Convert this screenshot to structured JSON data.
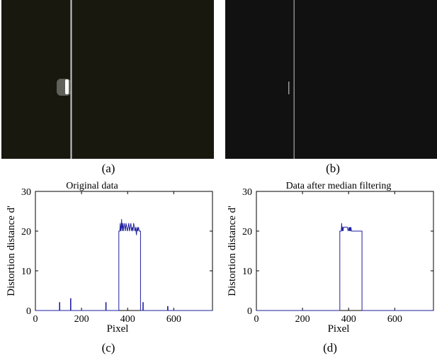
{
  "photos": [
    {
      "label": "(a)",
      "background": "#19180f",
      "line_color": "#c8c8c8"
    },
    {
      "label": "(b)",
      "background": "#111111",
      "line_color": "#8a8a8a"
    }
  ],
  "chart_data": [
    {
      "type": "line",
      "panel_label": "(c)",
      "title": "Original data",
      "xlabel": "Pixel",
      "ylabel": "Distortion distance d'",
      "xlim": [
        0,
        768
      ],
      "ylim": [
        0,
        30
      ],
      "xticks": [
        "0",
        "200",
        "400",
        "600"
      ],
      "yticks": [
        "0",
        "10",
        "20",
        "30"
      ],
      "grid": false,
      "line_color": "#1f1fa0",
      "series": [
        {
          "x": [
            0,
            104,
            104,
            106,
            106,
            152,
            152,
            154,
            154,
            305,
            305,
            307,
            307,
            362,
            362,
            366,
            368,
            370,
            372,
            374,
            376,
            378,
            380,
            382,
            385,
            388,
            390,
            393,
            396,
            399,
            402,
            405,
            408,
            411,
            414,
            417,
            420,
            423,
            426,
            429,
            432,
            435,
            438,
            441,
            444,
            447,
            450,
            453,
            456,
            456,
            466,
            466,
            468,
            468,
            573,
            573,
            575,
            575,
            768
          ],
          "y": [
            0,
            0,
            2,
            2,
            0,
            0,
            3,
            3,
            0,
            0,
            2,
            2,
            0,
            0,
            20,
            20,
            22,
            20,
            21,
            23,
            20,
            22,
            21,
            20,
            22,
            21,
            20,
            22,
            21,
            20,
            21,
            22,
            20,
            21,
            22,
            20,
            21,
            20,
            22,
            21,
            20,
            21,
            19,
            21,
            20,
            21,
            20,
            20,
            20,
            0,
            0,
            2,
            2,
            0,
            0,
            1,
            1,
            0,
            0
          ]
        }
      ]
    },
    {
      "type": "line",
      "panel_label": "(d)",
      "title": "Data after median filtering",
      "xlabel": "Pixel",
      "ylabel": "Distortion distance d'",
      "xlim": [
        0,
        768
      ],
      "ylim": [
        0,
        30
      ],
      "xticks": [
        "0",
        "200",
        "400",
        "600"
      ],
      "yticks": [
        "0",
        "10",
        "20",
        "30"
      ],
      "grid": false,
      "line_color": "#1f1fa0",
      "series": [
        {
          "x": [
            0,
            362,
            362,
            368,
            370,
            372,
            374,
            376,
            378,
            380,
            382,
            386,
            390,
            394,
            398,
            402,
            404,
            406,
            408,
            410,
            412,
            414,
            416,
            420,
            458,
            458,
            768
          ],
          "y": [
            0,
            0,
            20,
            20,
            22,
            20,
            21,
            20,
            21,
            21,
            21,
            21,
            21,
            21,
            20,
            21,
            20,
            21,
            20,
            21,
            20,
            20,
            20,
            20,
            20,
            0,
            0
          ]
        }
      ]
    }
  ]
}
